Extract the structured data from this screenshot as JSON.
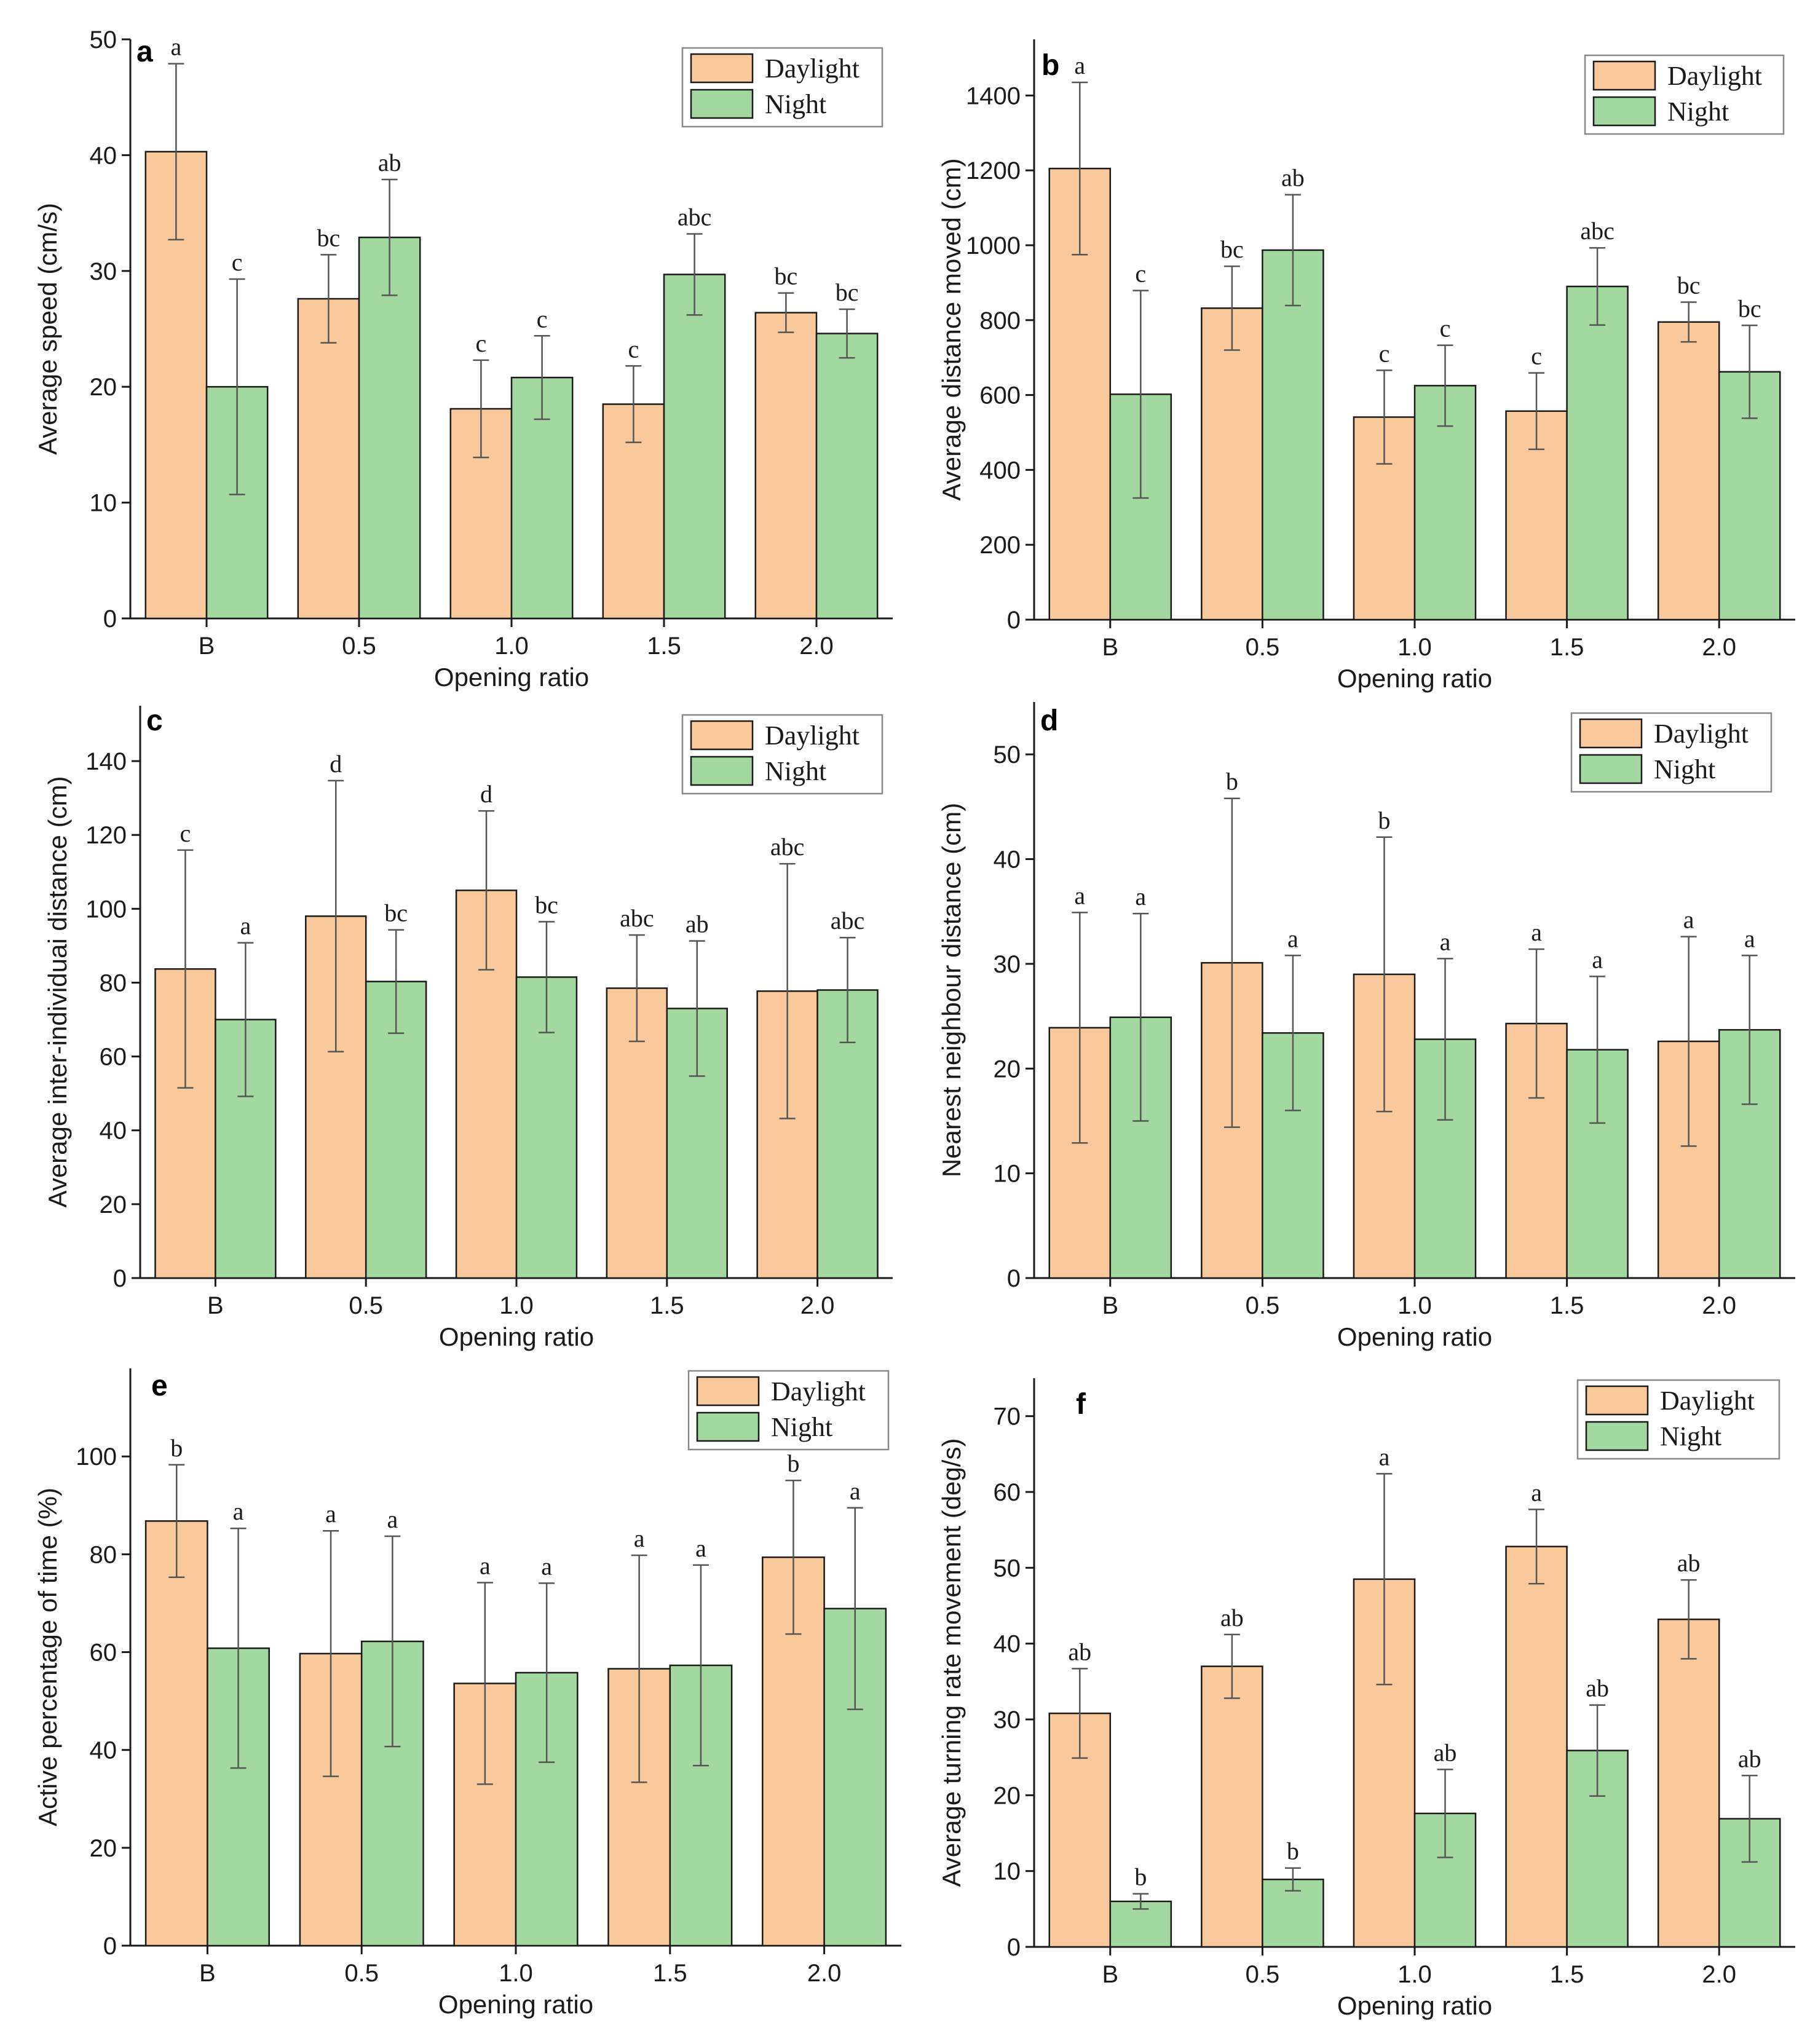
{
  "colors": {
    "daylight": "#F9C99B",
    "night": "#A3D8A0"
  },
  "legend": [
    "Daylight",
    "Night"
  ],
  "chart_data": [
    {
      "panel": "a",
      "type": "bar",
      "title": "",
      "categories": [
        "B",
        "0.5",
        "1.0",
        "1.5",
        "2.0"
      ],
      "xlabel": "Opening ratio",
      "ylabel": "Average speed (cm/s)",
      "ylim": [
        0,
        50
      ],
      "yticks": [
        0,
        10,
        20,
        30,
        40,
        50
      ],
      "legend_position": "top-right",
      "series": [
        {
          "name": "Daylight",
          "values": [
            40.3,
            27.6,
            18.1,
            18.5,
            26.4
          ],
          "errors": [
            7.6,
            3.8,
            4.2,
            3.3,
            1.7
          ],
          "letters": [
            "a",
            "bc",
            "c",
            "c",
            "bc"
          ]
        },
        {
          "name": "Night",
          "values": [
            20.0,
            32.9,
            20.8,
            29.7,
            24.6
          ],
          "errors": [
            9.3,
            5.0,
            3.6,
            3.5,
            2.1
          ],
          "letters": [
            "c",
            "ab",
            "c",
            "abc",
            "bc"
          ]
        }
      ]
    },
    {
      "panel": "b",
      "type": "bar",
      "title": "",
      "categories": [
        "B",
        "0.5",
        "1.0",
        "1.5",
        "2.0"
      ],
      "xlabel": "Opening ratio",
      "ylabel": "Average distance moved (cm)",
      "ylim": [
        0,
        1550
      ],
      "yticks": [
        0,
        200,
        400,
        600,
        800,
        1000,
        1200,
        1400
      ],
      "legend_position": "top-right",
      "series": [
        {
          "name": "Daylight",
          "values": [
            1205,
            832,
            541,
            557,
            795
          ],
          "errors": [
            230,
            112,
            125,
            102,
            53
          ],
          "letters": [
            "a",
            "bc",
            "c",
            "c",
            "bc"
          ]
        },
        {
          "name": "Night",
          "values": [
            602,
            987,
            625,
            890,
            662
          ],
          "errors": [
            277,
            148,
            108,
            103,
            124
          ],
          "letters": [
            "c",
            "ab",
            "c",
            "abc",
            "bc"
          ]
        }
      ]
    },
    {
      "panel": "c",
      "type": "bar",
      "title": "",
      "categories": [
        "B",
        "0.5",
        "1.0",
        "1.5",
        "2.0"
      ],
      "xlabel": "Opening ratio",
      "ylabel": "Average inter-individuai distance (cm)",
      "ylim": [
        0,
        155
      ],
      "yticks": [
        0,
        20,
        40,
        60,
        80,
        100,
        120,
        140
      ],
      "legend_position": "top-right",
      "series": [
        {
          "name": "Daylight",
          "values": [
            83.7,
            98.0,
            105.0,
            78.5,
            77.7
          ],
          "errors": [
            32.2,
            36.7,
            21.5,
            14.4,
            34.5
          ],
          "letters": [
            "c",
            "d",
            "d",
            "abc",
            "abc"
          ]
        },
        {
          "name": "Night",
          "values": [
            70.0,
            80.3,
            81.5,
            73.0,
            78.0
          ],
          "errors": [
            20.8,
            14.0,
            15.0,
            18.3,
            14.2
          ],
          "letters": [
            "a",
            "bc",
            "bc",
            "ab",
            "abc"
          ]
        }
      ]
    },
    {
      "panel": "d",
      "type": "bar",
      "title": "",
      "categories": [
        "B",
        "0.5",
        "1.0",
        "1.5",
        "2.0"
      ],
      "xlabel": "Opening ratio",
      "ylabel": "Nearest neighbour distance (cm)",
      "ylim": [
        0,
        55
      ],
      "yticks": [
        0,
        10,
        20,
        30,
        40,
        50
      ],
      "legend_position": "top-right",
      "series": [
        {
          "name": "Daylight",
          "values": [
            23.9,
            30.1,
            29.0,
            24.3,
            22.6
          ],
          "errors": [
            11.0,
            15.7,
            13.1,
            7.1,
            10.0
          ],
          "letters": [
            "a",
            "b",
            "b",
            "a",
            "a"
          ]
        },
        {
          "name": "Night",
          "values": [
            24.9,
            23.4,
            22.8,
            21.8,
            23.7
          ],
          "errors": [
            9.9,
            7.4,
            7.7,
            7.0,
            7.1
          ],
          "letters": [
            "a",
            "a",
            "a",
            "a",
            "a"
          ]
        }
      ]
    },
    {
      "panel": "e",
      "type": "bar",
      "title": "",
      "categories": [
        "B",
        "0.5",
        "1.0",
        "1.5",
        "2.0"
      ],
      "xlabel": "Opening ratio",
      "ylabel": "Active percentage of time (%)",
      "ylim": [
        0,
        118
      ],
      "yticks": [
        0,
        20,
        40,
        60,
        80,
        100
      ],
      "legend_position": "top-right",
      "series": [
        {
          "name": "Daylight",
          "values": [
            86.8,
            59.7,
            53.6,
            56.6,
            79.4
          ],
          "errors": [
            11.5,
            25.1,
            20.6,
            23.2,
            15.7
          ],
          "letters": [
            "b",
            "a",
            "a",
            "a",
            "b"
          ]
        },
        {
          "name": "Night",
          "values": [
            60.8,
            62.2,
            55.8,
            57.3,
            68.9
          ],
          "errors": [
            24.5,
            21.5,
            18.3,
            20.5,
            20.6
          ],
          "letters": [
            "a",
            "a",
            "a",
            "a",
            "a"
          ]
        }
      ]
    },
    {
      "panel": "f",
      "type": "bar",
      "title": "",
      "categories": [
        "B",
        "0.5",
        "1.0",
        "1.5",
        "2.0"
      ],
      "xlabel": "Opening ratio",
      "ylabel": "Average turning rate movement (deg/s)",
      "ylim": [
        0,
        75
      ],
      "yticks": [
        0,
        10,
        20,
        30,
        40,
        50,
        60,
        70
      ],
      "legend_position": "top-right",
      "series": [
        {
          "name": "Daylight",
          "values": [
            30.8,
            37.0,
            48.5,
            52.8,
            43.2
          ],
          "errors": [
            5.9,
            4.2,
            13.9,
            4.9,
            5.2
          ],
          "letters": [
            "ab",
            "ab",
            "a",
            "a",
            "ab"
          ]
        },
        {
          "name": "Night",
          "values": [
            6.0,
            8.9,
            17.6,
            25.9,
            16.9
          ],
          "errors": [
            1.0,
            1.5,
            5.8,
            6.0,
            5.7
          ],
          "letters": [
            "b",
            "b",
            "ab",
            "ab",
            "ab"
          ]
        }
      ]
    }
  ]
}
